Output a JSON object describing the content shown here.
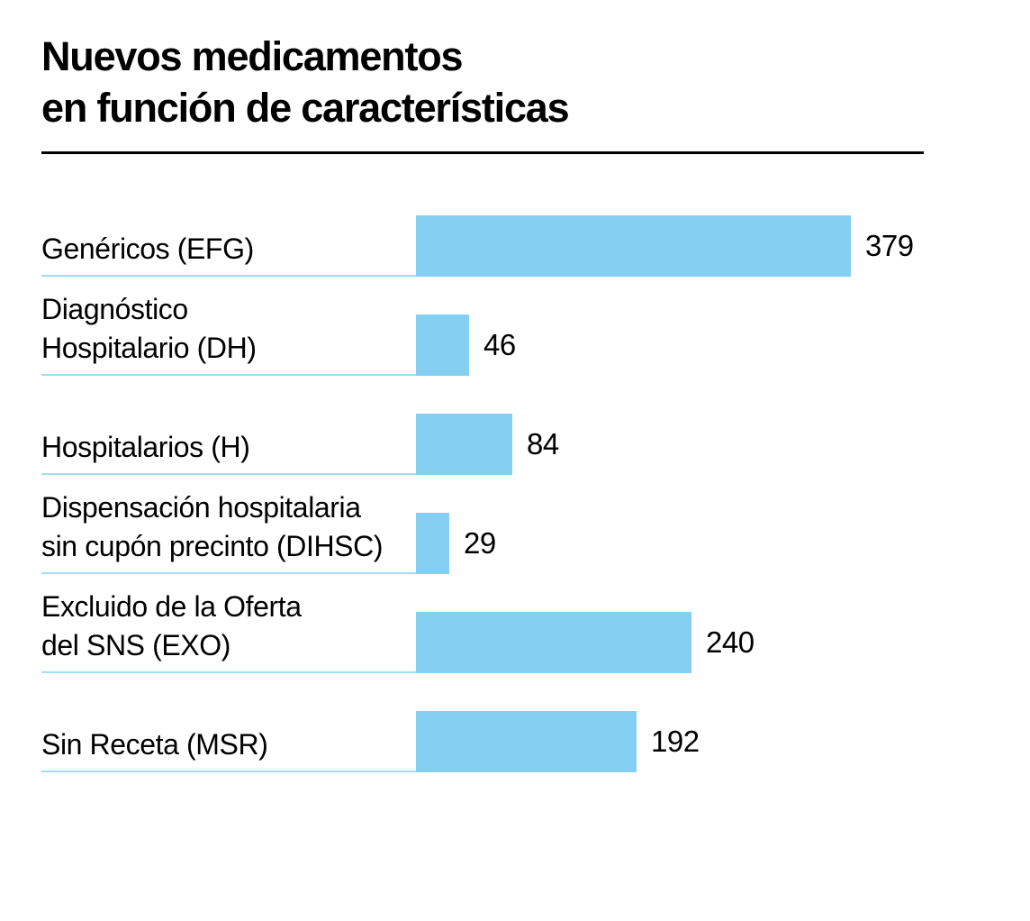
{
  "header": {
    "title_line1": "Nuevos medicamentos",
    "title_line2": "en función de características"
  },
  "chart_data": {
    "type": "bar",
    "orientation": "horizontal",
    "title": "Nuevos medicamentos en función de características",
    "categories": [
      "Genéricos (EFG)",
      "Diagnóstico Hospitalario (DH)",
      "Hospitalarios (H)",
      "Dispensación hospitalaria sin cupón precinto (DIHSC)",
      "Excluido de la Oferta del SNS (EXO)",
      "Sin Receta (MSR)"
    ],
    "category_lines": [
      [
        "Genéricos (EFG)"
      ],
      [
        "Diagnóstico",
        "Hospitalario (DH)"
      ],
      [
        "Hospitalarios (H)"
      ],
      [
        "Dispensación hospitalaria",
        "sin cupón precinto (DIHSC)"
      ],
      [
        "Excluido de la Oferta",
        "del SNS (EXO)"
      ],
      [
        "Sin Receta (MSR)"
      ]
    ],
    "values": [
      379,
      46,
      84,
      29,
      240,
      192
    ],
    "value_labels": [
      "379",
      "46",
      "84",
      "29",
      "240",
      "192"
    ],
    "xlabel": "",
    "ylabel": "",
    "xlim": [
      0,
      379
    ],
    "grid": false,
    "legend": false,
    "bar_color": "#85CFF2",
    "underline_color": "#A3DCF5",
    "text_color": "#000000",
    "rule_color": "#000000"
  }
}
